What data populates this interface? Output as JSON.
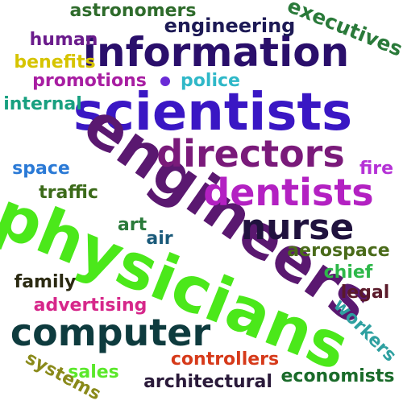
{
  "words": [
    {
      "text": "scientists",
      "color": "#3a17c4"
    },
    {
      "text": "engineers",
      "color": "#5a1870"
    },
    {
      "text": "physicians",
      "color": "#4be81a"
    },
    {
      "text": "information",
      "color": "#2a0f6b"
    },
    {
      "text": "directors",
      "color": "#7a1a7a"
    },
    {
      "text": "dentists",
      "color": "#b321c2"
    },
    {
      "text": "computer",
      "color": "#0e3b3e"
    },
    {
      "text": "nurse",
      "color": "#20123e"
    },
    {
      "text": "engineering",
      "color": "#1d1a55"
    },
    {
      "text": "executives",
      "color": "#2a7a3a"
    },
    {
      "text": "astronomers",
      "color": "#2e6b2b"
    },
    {
      "text": "human",
      "color": "#6b1c8c"
    },
    {
      "text": "benefits",
      "color": "#d6c400"
    },
    {
      "text": "promotions",
      "color": "#a81ea2"
    },
    {
      "text": "police",
      "color": "#2fb8c8"
    },
    {
      "text": "internal",
      "color": "#18a080"
    },
    {
      "text": "space",
      "color": "#2b7ad6"
    },
    {
      "text": "fire",
      "color": "#b532d6"
    },
    {
      "text": "traffic",
      "color": "#3c6b1a"
    },
    {
      "text": "art",
      "color": "#2a7a3a"
    },
    {
      "text": "air",
      "color": "#1a5a7a"
    },
    {
      "text": "aerospace",
      "color": "#4a6b1a"
    },
    {
      "text": "chief",
      "color": "#2eb84a"
    },
    {
      "text": "family",
      "color": "#2b2a12"
    },
    {
      "text": "legal",
      "color": "#5a1a2a"
    },
    {
      "text": "advertising",
      "color": "#d6278a"
    },
    {
      "text": "workers",
      "color": "#2ea0a0"
    },
    {
      "text": "controllers",
      "color": "#d63a1a"
    },
    {
      "text": "sales",
      "color": "#5ae82a"
    },
    {
      "text": "systems",
      "color": "#8a8a1a"
    },
    {
      "text": "architectural",
      "color": "#2a1a3a"
    },
    {
      "text": "economists",
      "color": "#1a6b2a"
    }
  ]
}
